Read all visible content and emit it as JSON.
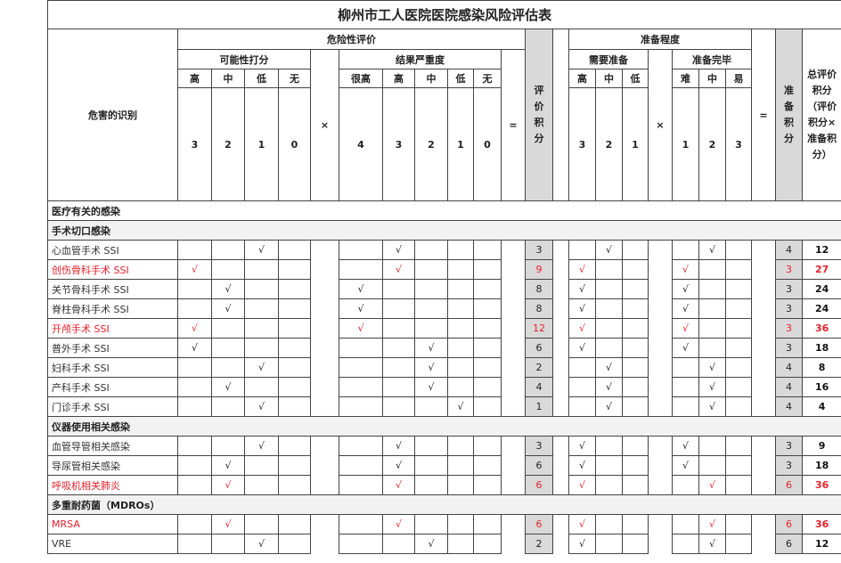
{
  "title": "柳州市工人医院医院感染风险评估表",
  "header": {
    "hazard": "危害的识别",
    "risk": "危险性评价",
    "probability": "可能性打分",
    "severity": "结果严重度",
    "eval_score": "评价积分",
    "prep": "准备程度",
    "need_prep": "需要准备",
    "prep_done": "准备完毕",
    "prep_score": "准备积分",
    "total": "总评价积分（评价积分×准备积分）",
    "times": "×",
    "equals": "=",
    "prob_levels": [
      "高",
      "中",
      "低",
      "无"
    ],
    "prob_scores": [
      "3",
      "2",
      "1",
      "0"
    ],
    "sev_levels": [
      "很高",
      "高",
      "中",
      "低",
      "无"
    ],
    "sev_scores": [
      "4",
      "3",
      "2",
      "1",
      "0"
    ],
    "need_levels": [
      "高",
      "中",
      "低"
    ],
    "need_scores": [
      "3",
      "2",
      "1"
    ],
    "done_levels": [
      "难",
      "中",
      "易"
    ],
    "done_scores": [
      "1",
      "2",
      "3"
    ]
  },
  "check": "√",
  "colors": {
    "highlight": "#e8202a",
    "score_bg": "#d9d9d9",
    "section_bg": "#f2f2f2"
  },
  "groups": [
    {
      "label": "医疗有关的感染",
      "rows": []
    },
    {
      "label": "手术切口感染",
      "rows": [
        {
          "name": "心血管手术 SSI",
          "prob": 2,
          "sev": 1,
          "need": 1,
          "done": 1,
          "score": "3",
          "prep_score": "4",
          "total": "12",
          "highlight": false
        },
        {
          "name": "创伤骨科手术 SSI",
          "prob": 0,
          "sev": 1,
          "need": 0,
          "done": 0,
          "score": "9",
          "prep_score": "3",
          "total": "27",
          "highlight": true
        },
        {
          "name": "关节骨科手术 SSI",
          "prob": 1,
          "sev": 0,
          "need": 0,
          "done": 0,
          "score": "8",
          "prep_score": "3",
          "total": "24",
          "highlight": false
        },
        {
          "name": "脊柱骨科手术 SSI",
          "prob": 1,
          "sev": 0,
          "need": 0,
          "done": 0,
          "score": "8",
          "prep_score": "3",
          "total": "24",
          "highlight": false
        },
        {
          "name": "开颅手术 SSI",
          "prob": 0,
          "sev": 0,
          "need": 0,
          "done": 0,
          "score": "12",
          "prep_score": "3",
          "total": "36",
          "highlight": true
        },
        {
          "name": "普外手术 SSI",
          "prob": 0,
          "sev": 2,
          "need": 0,
          "done": 0,
          "score": "6",
          "prep_score": "3",
          "total": "18",
          "highlight": false
        },
        {
          "name": "妇科手术 SSI",
          "prob": 2,
          "sev": 2,
          "need": 1,
          "done": 1,
          "score": "2",
          "prep_score": "4",
          "total": "8",
          "highlight": false
        },
        {
          "name": "产科手术 SSI",
          "prob": 1,
          "sev": 2,
          "need": 1,
          "done": 1,
          "score": "4",
          "prep_score": "4",
          "total": "16",
          "highlight": false
        },
        {
          "name": "门诊手术 SSI",
          "prob": 2,
          "sev": 3,
          "need": 1,
          "done": 1,
          "score": "1",
          "prep_score": "4",
          "total": "4",
          "highlight": false
        }
      ]
    },
    {
      "label": "仪器使用相关感染",
      "rows": [
        {
          "name": "血管导管相关感染",
          "prob": 2,
          "sev": 1,
          "need": 0,
          "done": 0,
          "score": "3",
          "prep_score": "3",
          "total": "9",
          "highlight": false
        },
        {
          "name": "导尿管相关感染",
          "prob": 1,
          "sev": 1,
          "need": 0,
          "done": 0,
          "score": "6",
          "prep_score": "3",
          "total": "18",
          "highlight": false
        },
        {
          "name": "呼吸机相关肺炎",
          "prob": 1,
          "sev": 1,
          "need": 0,
          "done": 1,
          "score": "6",
          "prep_score": "6",
          "total": "36",
          "highlight": true
        }
      ]
    },
    {
      "label": "多重耐药菌（MDROs）",
      "rows": [
        {
          "name": "MRSA",
          "prob": 1,
          "sev": 1,
          "need": 0,
          "done": 1,
          "score": "6",
          "prep_score": "6",
          "total": "36",
          "highlight": true
        },
        {
          "name": "VRE",
          "prob": 2,
          "sev": 2,
          "need": 0,
          "done": 1,
          "score": "2",
          "prep_score": "6",
          "total": "12",
          "highlight": false
        }
      ]
    }
  ]
}
